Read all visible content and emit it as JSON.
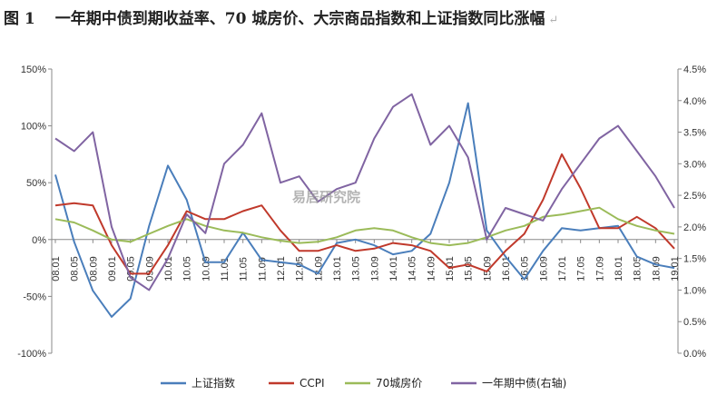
{
  "title": {
    "figure_no": "图 1",
    "text": "一年期中债到期收益率、70 城房价、大宗商品指数和上证指数同比涨幅",
    "end_mark": "↵"
  },
  "watermark": "易居研究院",
  "chart_data": {
    "type": "line",
    "categories": [
      "08.01",
      "08.05",
      "08.09",
      "09.01",
      "09.05",
      "09.09",
      "10.01",
      "10.05",
      "10.09",
      "11.01",
      "11.05",
      "11.09",
      "12.01",
      "12.05",
      "12.09",
      "13.01",
      "13.05",
      "13.09",
      "14.01",
      "14.05",
      "14.09",
      "15.01",
      "15.05",
      "15.09",
      "16.01",
      "16.05",
      "16.09",
      "17.01",
      "17.05",
      "17.09",
      "18.01",
      "18.05",
      "18.09",
      "19.01"
    ],
    "y_left": {
      "ticks": [
        "150%",
        "100%",
        "50%",
        "0%",
        "-50%",
        "-100%"
      ],
      "tick_values": [
        150,
        100,
        50,
        0,
        -50,
        -100
      ],
      "range": [
        -100,
        150
      ]
    },
    "y_right": {
      "ticks": [
        "4.5%",
        "4.0%",
        "3.5%",
        "3.0%",
        "2.5%",
        "2.0%",
        "1.5%",
        "1.0%",
        "0.5%",
        "0.0%"
      ],
      "tick_values": [
        4.5,
        4.0,
        3.5,
        3.0,
        2.5,
        2.0,
        1.5,
        1.0,
        0.5,
        0.0
      ],
      "range": [
        0,
        4.5
      ]
    },
    "legend_position": "bottom",
    "grid": false,
    "series": [
      {
        "name": "上证指数",
        "axis": "left",
        "color": "#4a7ebb",
        "values": [
          57,
          -2,
          -45,
          -68,
          -52,
          12,
          65,
          35,
          -20,
          -20,
          6,
          -18,
          -20,
          -22,
          -30,
          -3,
          0,
          -5,
          -13,
          -10,
          5,
          50,
          120,
          8,
          -15,
          -35,
          -10,
          10,
          8,
          10,
          12,
          -15,
          -22,
          -25
        ]
      },
      {
        "name": "CCPI",
        "axis": "left",
        "color": "#c0392b",
        "values": [
          30,
          32,
          30,
          -5,
          -30,
          -30,
          -5,
          25,
          18,
          18,
          25,
          30,
          8,
          -10,
          -10,
          -5,
          -10,
          -8,
          -3,
          -5,
          -10,
          -25,
          -22,
          -28,
          -10,
          5,
          35,
          75,
          45,
          10,
          10,
          20,
          10,
          -8
        ]
      },
      {
        "name": "70城房价",
        "axis": "left",
        "color": "#9bbb59",
        "values": [
          18,
          15,
          8,
          0,
          -2,
          5,
          12,
          18,
          12,
          8,
          6,
          2,
          -1,
          -3,
          -2,
          2,
          8,
          10,
          8,
          2,
          -3,
          -5,
          -3,
          2,
          8,
          12,
          20,
          22,
          25,
          28,
          18,
          12,
          8,
          5
        ]
      },
      {
        "name": "一年期中债(右轴)",
        "axis": "right",
        "color": "#8064a2",
        "values": [
          3.4,
          3.2,
          3.5,
          2.0,
          1.2,
          1.0,
          1.5,
          2.2,
          1.9,
          3.0,
          3.3,
          3.8,
          2.7,
          2.8,
          2.4,
          2.6,
          2.7,
          3.4,
          3.9,
          4.1,
          3.3,
          3.6,
          3.1,
          1.8,
          2.3,
          2.2,
          2.1,
          2.6,
          3.0,
          3.4,
          3.6,
          3.2,
          2.8,
          2.3
        ]
      }
    ]
  }
}
